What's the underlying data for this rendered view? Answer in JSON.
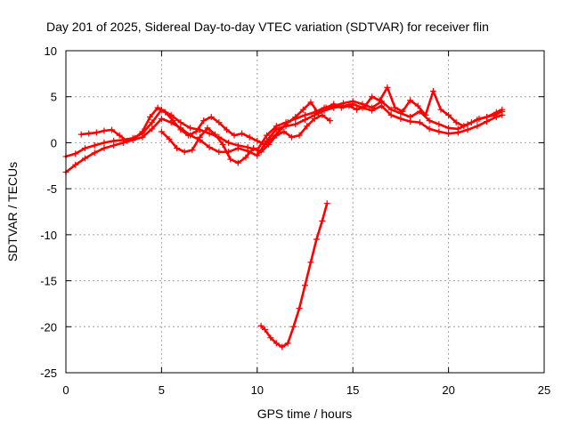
{
  "chart_data": {
    "type": "scatter",
    "title": "Day 201 of 2025, Sidereal Day-to-day VTEC variation (SDTVAR) for receiver flin",
    "xlabel": "GPS time / hours",
    "ylabel": "SDTVAR / TECUs",
    "xlim": [
      0,
      25
    ],
    "ylim": [
      -25,
      10
    ],
    "xticks": [
      "0",
      "5",
      "10",
      "15",
      "20",
      "25"
    ],
    "yticks": [
      "10",
      "5",
      "0",
      "-5",
      "-10",
      "-15",
      "-20",
      "-25"
    ],
    "grid": true,
    "marker": "plus",
    "color": "#ff0000",
    "series": [
      {
        "x": [
          0.0,
          0.5,
          1.0,
          1.5,
          2.0,
          2.5,
          3.0,
          3.5,
          4.0,
          4.5,
          5.0,
          5.5,
          6.0,
          6.5,
          7.0,
          7.5,
          8.0,
          8.5,
          9.0,
          9.5,
          10.0,
          10.5,
          11.0,
          11.5,
          12.0,
          12.5,
          13.0,
          13.5,
          14.0,
          14.5,
          15.0,
          15.5,
          16.0,
          16.5,
          17.0,
          17.5,
          18.0,
          18.5,
          19.0,
          19.5,
          20.0,
          20.5,
          21.0,
          21.5,
          22.0,
          22.5,
          22.8
        ],
        "y": [
          -3.2,
          -2.4,
          -1.7,
          -1.1,
          -0.6,
          -0.3,
          0.0,
          0.3,
          0.6,
          1.5,
          2.6,
          2.2,
          1.6,
          0.8,
          0.3,
          -0.5,
          -1.0,
          -1.0,
          -0.6,
          -0.9,
          -1.4,
          0.2,
          1.5,
          1.8,
          2.0,
          2.5,
          3.0,
          3.5,
          3.8,
          4.0,
          4.2,
          3.8,
          3.5,
          4.0,
          3.0,
          2.6,
          2.3,
          2.2,
          1.5,
          1.2,
          1.0,
          1.1,
          1.4,
          1.8,
          2.3,
          2.8,
          3.0
        ]
      },
      {
        "x": [
          0.0,
          0.5,
          1.0,
          1.5,
          2.0,
          2.5,
          3.0,
          3.5,
          4.0,
          4.5,
          5.0,
          5.5,
          6.0,
          6.5,
          7.0,
          7.5,
          8.0,
          8.5,
          9.0,
          9.5,
          10.0,
          10.5,
          11.0,
          11.5,
          12.0,
          12.5,
          13.0,
          13.5,
          14.0,
          14.5,
          15.0,
          15.5,
          16.0,
          16.5,
          17.0,
          17.5,
          18.0,
          18.5,
          19.0,
          19.5,
          20.0,
          20.5,
          21.0,
          21.5,
          22.0,
          22.5,
          22.8
        ],
        "y": [
          -1.5,
          -1.2,
          -0.6,
          -0.3,
          0.0,
          0.2,
          0.3,
          0.5,
          1.0,
          2.2,
          3.6,
          3.0,
          2.2,
          1.6,
          1.4,
          1.0,
          0.6,
          0.0,
          -0.3,
          -0.5,
          -0.8,
          0.8,
          1.8,
          2.2,
          2.6,
          3.0,
          3.3,
          3.8,
          4.0,
          4.3,
          4.5,
          4.2,
          3.8,
          4.5,
          3.6,
          3.2,
          2.8,
          3.4,
          2.4,
          2.0,
          1.6,
          1.5,
          2.0,
          2.5,
          2.8,
          3.3,
          3.6
        ]
      },
      {
        "x": [
          0.8,
          1.2,
          1.6,
          2.0,
          2.4,
          2.8,
          3.2,
          3.6,
          4.0,
          4.4,
          4.8,
          5.2,
          5.6,
          6.0,
          6.4,
          6.8,
          7.2,
          7.6,
          8.0,
          8.4,
          8.8,
          9.2,
          9.6,
          10.0,
          10.4,
          10.8,
          11.2,
          11.6,
          12.0,
          12.4,
          12.8,
          13.2,
          13.6,
          14.0,
          14.4,
          14.8,
          15.2,
          15.6,
          16.0,
          16.4,
          16.8,
          17.2,
          17.6,
          18.0,
          18.4,
          18.8,
          19.2,
          19.6,
          20.0,
          20.4,
          20.8,
          21.2,
          21.6,
          22.0,
          22.4,
          22.8
        ],
        "y": [
          0.9,
          1.0,
          1.1,
          1.3,
          1.4,
          0.8,
          0.2,
          0.5,
          1.2,
          2.8,
          3.8,
          3.3,
          2.4,
          1.4,
          0.8,
          1.2,
          2.4,
          2.8,
          2.2,
          1.4,
          0.8,
          1.0,
          0.6,
          0.2,
          -0.2,
          0.5,
          1.4,
          2.2,
          2.8,
          3.6,
          4.4,
          3.2,
          3.8,
          4.2,
          3.8,
          4.0,
          3.6,
          3.9,
          5.0,
          4.6,
          6.0,
          3.8,
          3.4,
          4.6,
          4.0,
          3.0,
          5.6,
          3.6,
          3.0,
          2.2,
          1.8,
          2.2,
          2.6,
          2.8,
          3.0,
          3.4
        ]
      },
      {
        "x": [
          5.0,
          5.4,
          5.8,
          6.2,
          6.6,
          7.0,
          7.4,
          7.8,
          8.2,
          8.6,
          9.0,
          9.4,
          9.8,
          10.2,
          10.6,
          11.0,
          11.4,
          11.8,
          12.2,
          12.6,
          13.0,
          13.4,
          13.8
        ],
        "y": [
          1.2,
          0.4,
          -0.6,
          -1.0,
          -0.8,
          0.6,
          1.6,
          0.9,
          -0.2,
          -1.8,
          -2.2,
          -1.6,
          -0.6,
          -1.0,
          -0.2,
          0.8,
          1.2,
          0.6,
          0.8,
          1.8,
          2.6,
          3.0,
          2.4
        ]
      },
      {
        "x": [
          10.2,
          10.4,
          10.7,
          11.0,
          11.3,
          11.6,
          11.9,
          12.2,
          12.5,
          12.8,
          13.1,
          13.4,
          13.65
        ],
        "y": [
          -19.9,
          -20.3,
          -21.2,
          -21.8,
          -22.2,
          -21.8,
          -20.0,
          -18.0,
          -15.5,
          -13.0,
          -10.5,
          -8.5,
          -6.6
        ]
      }
    ]
  }
}
